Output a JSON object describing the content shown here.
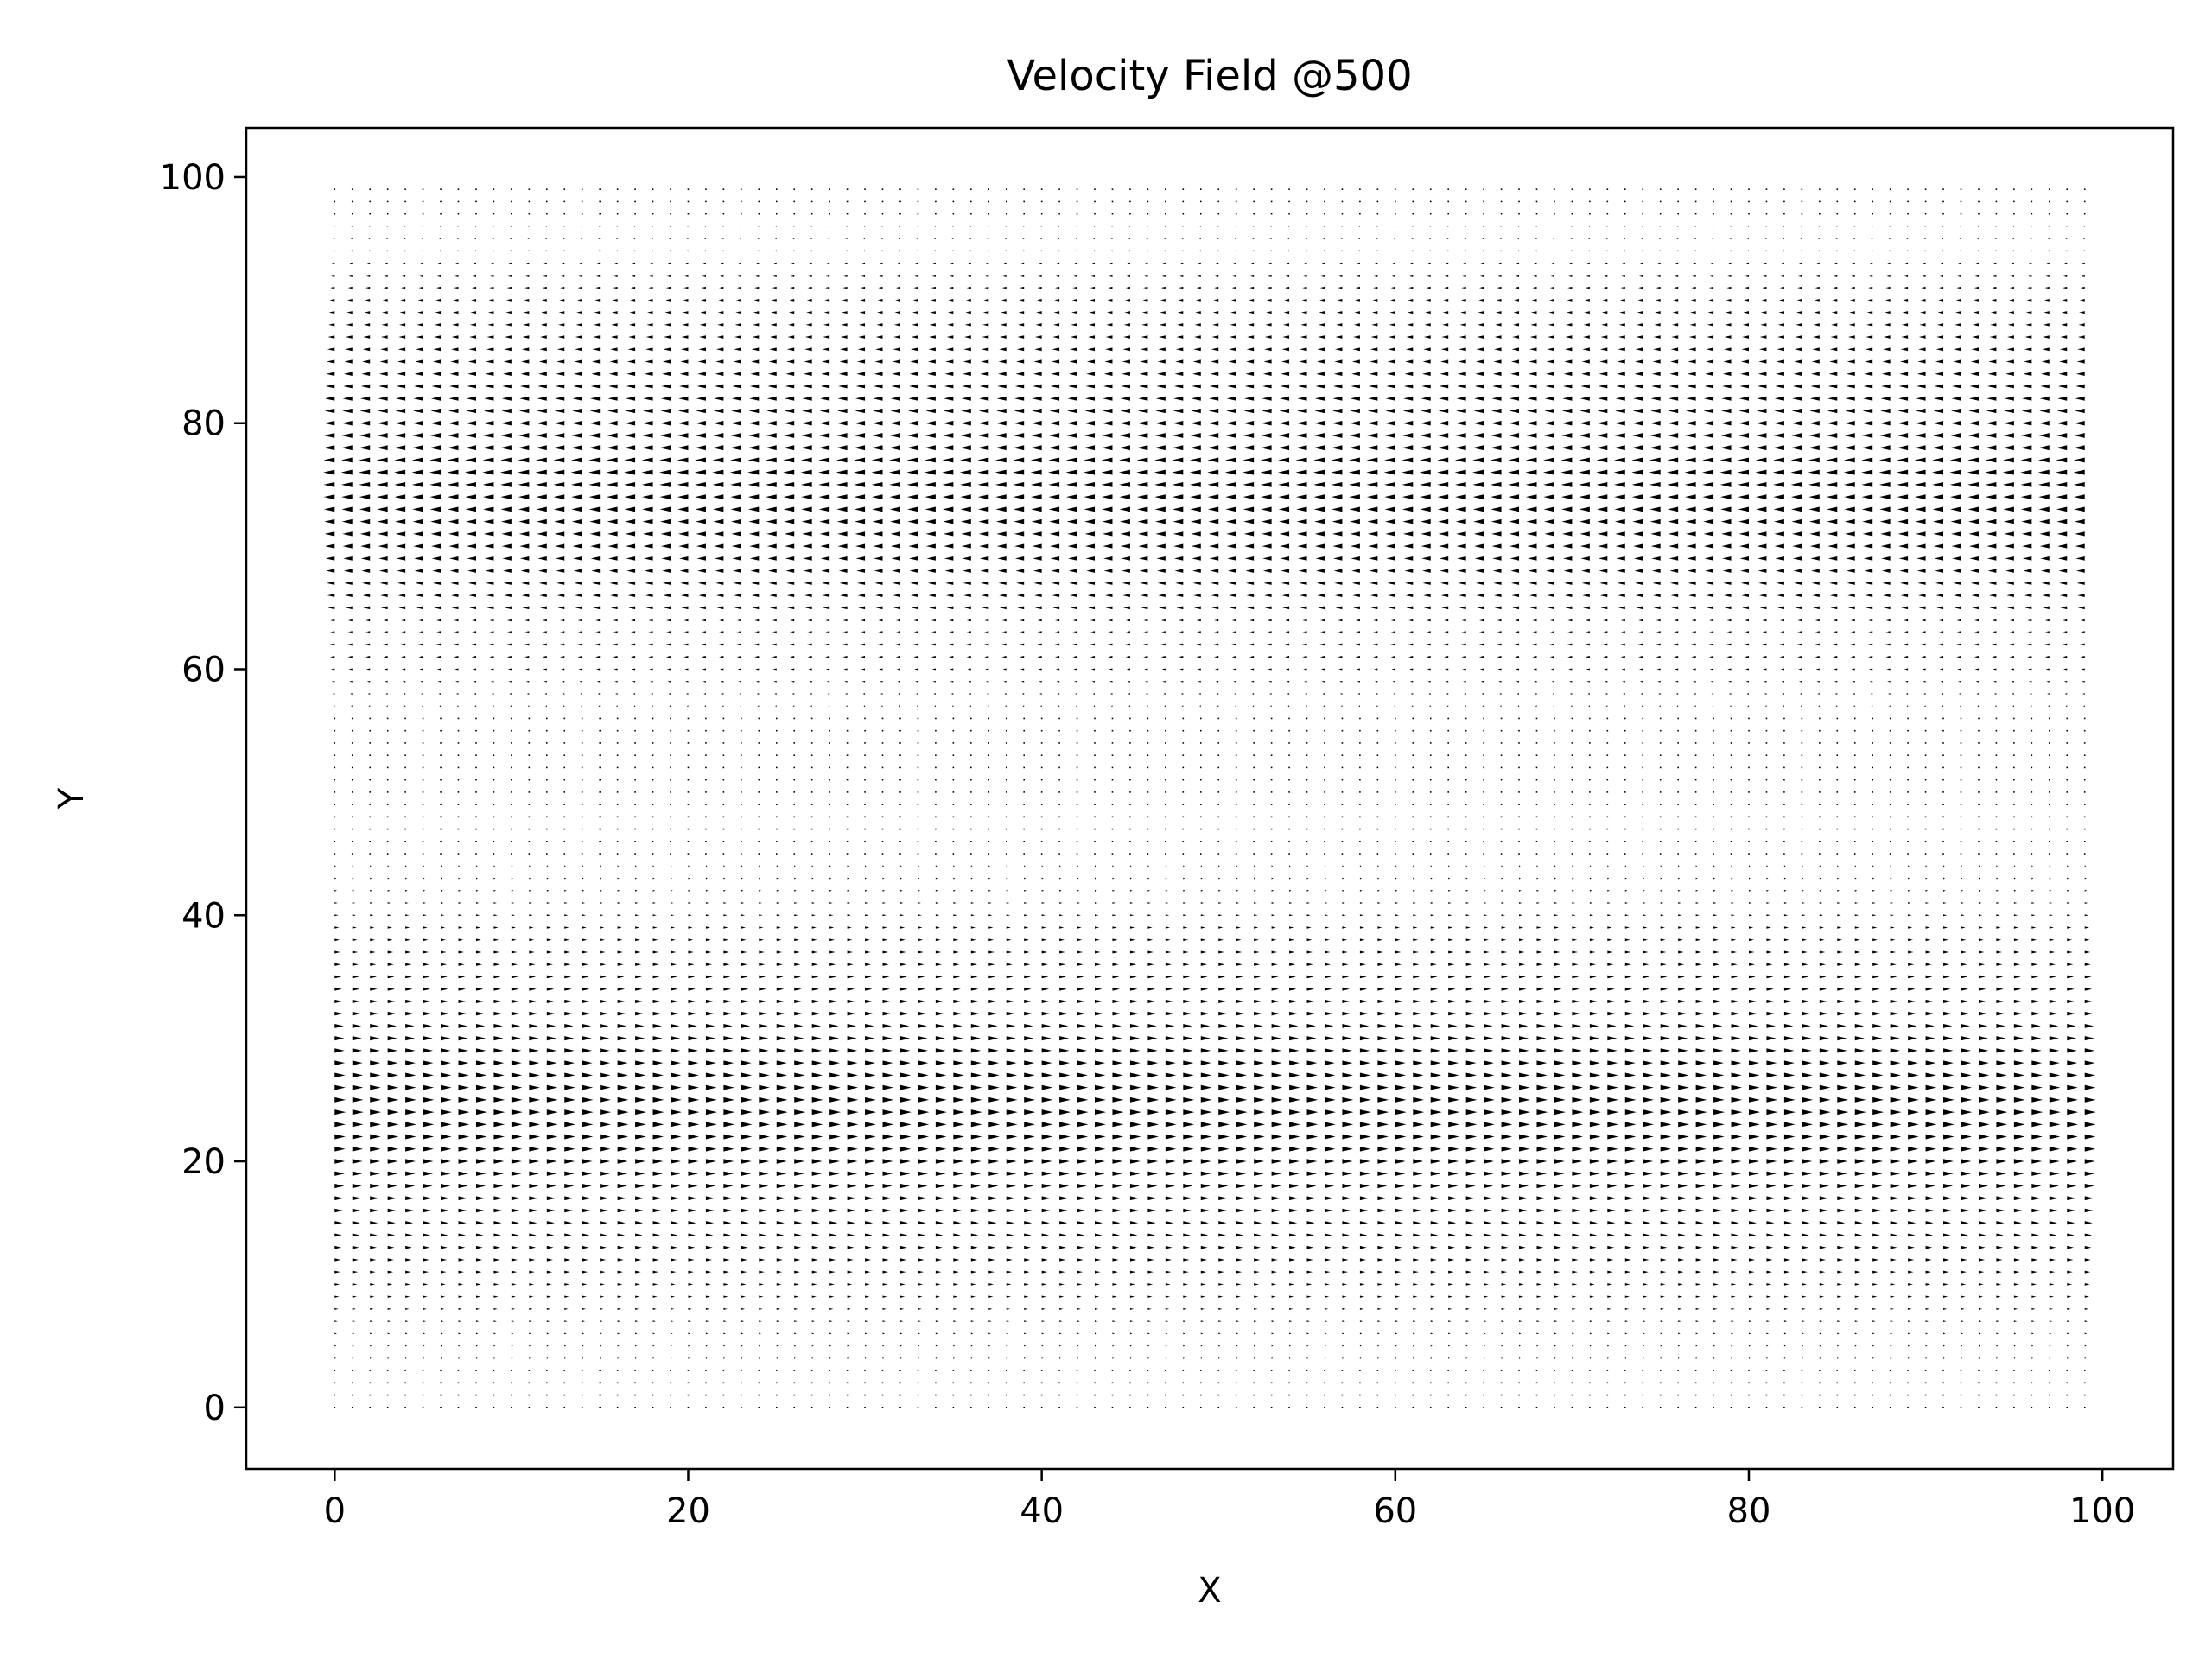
{
  "chart_data": {
    "type": "quiver",
    "title": "Velocity Field @500",
    "xlabel": "X",
    "ylabel": "Y",
    "xlim": [
      -5,
      104
    ],
    "ylim": [
      -5,
      104
    ],
    "xticks": [
      0,
      20,
      40,
      60,
      80,
      100
    ],
    "yticks": [
      0,
      20,
      40,
      60,
      80,
      100
    ],
    "xtick_labels": [
      "0",
      "20",
      "40",
      "60",
      "80",
      "100"
    ],
    "ytick_labels": [
      "0",
      "20",
      "40",
      "60",
      "80",
      "100"
    ],
    "grid": false,
    "legend": "none",
    "arrow_color": "#000000",
    "grid_x": {
      "start": 0,
      "stop": 99,
      "step": 1
    },
    "grid_y": {
      "start": 0,
      "stop": 99,
      "step": 1
    },
    "velocity_profile": {
      "description": "horizontal velocity u(y), v = 0",
      "y": [
        0,
        3,
        6,
        9,
        12,
        15,
        18,
        21,
        24,
        27,
        30,
        33,
        36,
        39,
        42,
        45,
        50,
        55,
        58,
        61,
        64,
        67,
        70,
        73,
        76,
        79,
        82,
        85,
        88,
        91,
        94,
        97,
        99
      ],
      "u": [
        0.05,
        0.05,
        0.2,
        0.4,
        0.55,
        0.7,
        0.85,
        0.95,
        1.0,
        0.95,
        0.85,
        0.7,
        0.55,
        0.4,
        0.2,
        0.05,
        0.05,
        0.05,
        -0.2,
        -0.4,
        -0.55,
        -0.7,
        -0.85,
        -0.95,
        -1.0,
        -0.95,
        -0.85,
        -0.7,
        -0.55,
        -0.4,
        -0.2,
        -0.05,
        -0.05
      ]
    }
  }
}
